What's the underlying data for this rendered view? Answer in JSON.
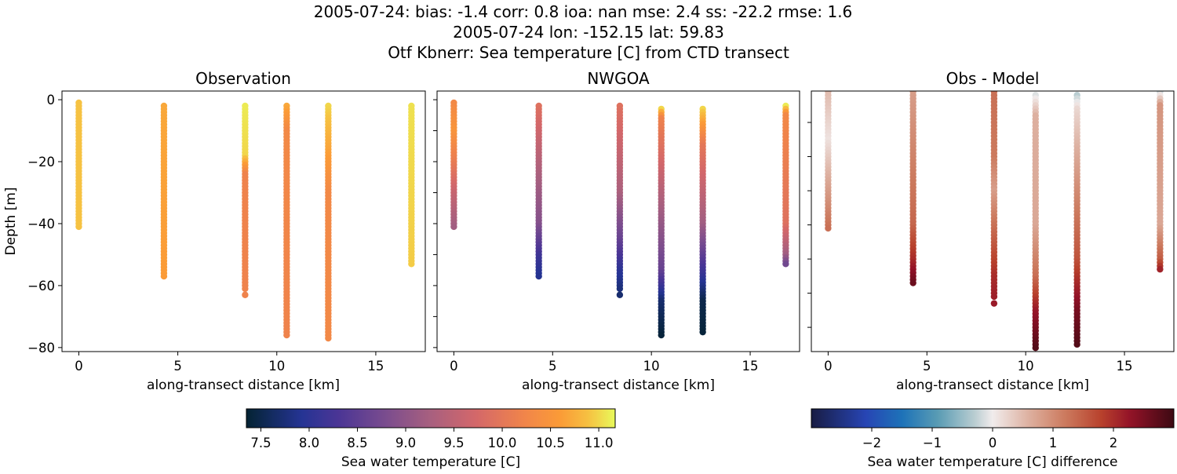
{
  "title_lines": [
    "2005-07-24: bias: -1.4  corr: 0.8  ioa: nan  mse: 2.4  ss: -22.2  rmse: 1.6",
    "2005-07-24 lon: -152.15 lat: 59.83",
    "Otf Kbnerr: Sea temperature [C] from CTD transect"
  ],
  "colors": {
    "thermal": [
      [
        0,
        "#042333"
      ],
      [
        0.15,
        "#253494"
      ],
      [
        0.25,
        "#4b3595"
      ],
      [
        0.38,
        "#7b4d8e"
      ],
      [
        0.5,
        "#a8607f"
      ],
      [
        0.62,
        "#d3676a"
      ],
      [
        0.75,
        "#f0844b"
      ],
      [
        0.85,
        "#fb9b37"
      ],
      [
        0.93,
        "#f6c242"
      ],
      [
        1,
        "#e8fa5b"
      ]
    ],
    "balance": [
      [
        0,
        "#181c43"
      ],
      [
        0.15,
        "#2745b4"
      ],
      [
        0.25,
        "#1d72b8"
      ],
      [
        0.35,
        "#5a9cb4"
      ],
      [
        0.45,
        "#b9cdd1"
      ],
      [
        0.5,
        "#f1ecec"
      ],
      [
        0.6,
        "#ddb0a0"
      ],
      [
        0.7,
        "#cc7a5e"
      ],
      [
        0.8,
        "#b8412c"
      ],
      [
        0.88,
        "#931228"
      ],
      [
        1,
        "#3c0912"
      ]
    ]
  },
  "chart_data": [
    {
      "type": "scatter",
      "title": "Observation",
      "xlabel": "along-transect distance [km]",
      "ylabel": "Depth [m]",
      "xlim": [
        -0.85,
        17.5
      ],
      "ylim": [
        -81.3,
        2.8
      ],
      "xticks": [
        0,
        5,
        10,
        15
      ],
      "xtick_labels": [
        "0",
        "5",
        "10",
        "15"
      ],
      "yticks": [
        0,
        -20,
        -40,
        -60,
        -80
      ],
      "ytick_labels": [
        "0",
        "−20",
        "−40",
        "−60",
        "−80"
      ],
      "colormap": "thermal",
      "clim": [
        7.35,
        11.17
      ],
      "profiles": [
        {
          "x": 0,
          "top": -1,
          "bottom": -41,
          "values": [
            [
              -1,
              10.9
            ],
            [
              -41,
              10.9
            ]
          ]
        },
        {
          "x": 4.3,
          "top": -2,
          "bottom": -57,
          "values": [
            [
              -2,
              10.7
            ],
            [
              -57,
              10.6
            ]
          ]
        },
        {
          "x": 8.4,
          "top": -2,
          "bottom": -61,
          "extra": -63,
          "values": [
            [
              -2,
              11.1
            ],
            [
              -18,
              11.0
            ],
            [
              -24,
              10.2
            ],
            [
              -63,
              10.2
            ]
          ]
        },
        {
          "x": 10.5,
          "top": -2,
          "bottom": -76,
          "values": [
            [
              -2,
              10.7
            ],
            [
              -10,
              10.3
            ],
            [
              -76,
              10.2
            ]
          ]
        },
        {
          "x": 12.6,
          "top": -2,
          "bottom": -77,
          "values": [
            [
              -2,
              11.0
            ],
            [
              -15,
              10.7
            ],
            [
              -30,
              10.3
            ],
            [
              -77,
              10.3
            ]
          ]
        },
        {
          "x": 16.8,
          "top": -2,
          "bottom": -53,
          "values": [
            [
              -2,
              11.05
            ],
            [
              -53,
              10.95
            ]
          ]
        }
      ]
    },
    {
      "type": "scatter",
      "title": "NWGOA",
      "xlabel": "along-transect distance [km]",
      "xlim": [
        -0.85,
        17.5
      ],
      "ylim": [
        -81.3,
        2.8
      ],
      "xticks": [
        0,
        5,
        10,
        15
      ],
      "xtick_labels": [
        "0",
        "5",
        "10",
        "15"
      ],
      "yticks": [
        0,
        -10,
        -20,
        -30,
        -40,
        -50,
        -60,
        -70,
        -80
      ],
      "colormap": "thermal",
      "clim": [
        7.35,
        11.17
      ],
      "profiles": [
        {
          "x": 0,
          "top": -1,
          "bottom": -41,
          "values": [
            [
              -1,
              10.3
            ],
            [
              -10,
              10.5
            ],
            [
              -20,
              10.1
            ],
            [
              -30,
              9.6
            ],
            [
              -41,
              9.2
            ]
          ]
        },
        {
          "x": 4.3,
          "top": -2,
          "bottom": -57,
          "values": [
            [
              -2,
              9.9
            ],
            [
              -20,
              9.4
            ],
            [
              -40,
              8.9
            ],
            [
              -50,
              8.2
            ],
            [
              -57,
              7.9
            ]
          ]
        },
        {
          "x": 8.4,
          "top": -2,
          "bottom": -61,
          "extra": -63,
          "values": [
            [
              -2,
              9.9
            ],
            [
              -30,
              9.3
            ],
            [
              -45,
              8.6
            ],
            [
              -55,
              8.0
            ],
            [
              -63,
              7.7
            ]
          ]
        },
        {
          "x": 10.5,
          "top": -3,
          "bottom": -76,
          "values": [
            [
              -3,
              11.0
            ],
            [
              -6,
              10.2
            ],
            [
              -30,
              9.4
            ],
            [
              -55,
              8.6
            ],
            [
              -65,
              7.7
            ],
            [
              -76,
              7.4
            ]
          ]
        },
        {
          "x": 12.6,
          "top": -3,
          "bottom": -75,
          "values": [
            [
              -3,
              11.0
            ],
            [
              -15,
              10.0
            ],
            [
              -40,
              9.2
            ],
            [
              -55,
              8.2
            ],
            [
              -65,
              7.5
            ],
            [
              -75,
              7.4
            ]
          ]
        },
        {
          "x": 16.8,
          "top": -2,
          "bottom": -53,
          "values": [
            [
              -2,
              11.1
            ],
            [
              -5,
              10.3
            ],
            [
              -40,
              9.9
            ],
            [
              -50,
              9.2
            ],
            [
              -53,
              8.7
            ]
          ]
        }
      ]
    },
    {
      "type": "scatter",
      "title": "Obs - Model",
      "xlabel": "along-transect distance [km]",
      "xlim": [
        -0.85,
        17.5
      ],
      "ylim": [
        -77.1,
        -0.8
      ],
      "xticks": [
        0,
        5,
        10,
        15
      ],
      "xtick_labels": [
        "0",
        "5",
        "10",
        "15"
      ],
      "yticks": [
        -10,
        -20,
        -30,
        -40,
        -50,
        -60,
        -70
      ],
      "colormap": "balance",
      "clim": [
        -3,
        3
      ],
      "profiles": [
        {
          "x": 0,
          "top": -1,
          "bottom": -41,
          "values": [
            [
              -1,
              0.5
            ],
            [
              -15,
              0.1
            ],
            [
              -30,
              0.8
            ],
            [
              -41,
              1.3
            ]
          ]
        },
        {
          "x": 4.3,
          "top": -1,
          "bottom": -57,
          "values": [
            [
              -1,
              0.8
            ],
            [
              -40,
              1.4
            ],
            [
              -50,
              2.0
            ],
            [
              -57,
              2.6
            ]
          ]
        },
        {
          "x": 8.4,
          "top": -1,
          "bottom": -61,
          "extra": -63,
          "values": [
            [
              -1,
              1.3
            ],
            [
              -20,
              1.2
            ],
            [
              -30,
              0.8
            ],
            [
              -55,
              2.0
            ],
            [
              -63,
              2.2
            ]
          ]
        },
        {
          "x": 10.5,
          "top": -2,
          "bottom": -76,
          "values": [
            [
              -2,
              -0.1
            ],
            [
              -8,
              0.6
            ],
            [
              -40,
              0.7
            ],
            [
              -55,
              1.3
            ],
            [
              -65,
              2.2
            ],
            [
              -76,
              2.8
            ]
          ]
        },
        {
          "x": 12.6,
          "top": -2,
          "bottom": -75,
          "values": [
            [
              -2,
              -0.3
            ],
            [
              -6,
              0.2
            ],
            [
              -30,
              1.0
            ],
            [
              -50,
              1.6
            ],
            [
              -65,
              2.5
            ],
            [
              -75,
              2.8
            ]
          ]
        },
        {
          "x": 16.8,
          "top": -1,
          "bottom": -53,
          "values": [
            [
              -1,
              -0.2
            ],
            [
              -5,
              0.9
            ],
            [
              -40,
              0.7
            ],
            [
              -50,
              1.5
            ],
            [
              -53,
              2.1
            ]
          ]
        }
      ]
    }
  ],
  "colorbars": [
    {
      "label": "Sea water temperature [C]",
      "colormap": "thermal",
      "range": [
        7.35,
        11.17
      ],
      "ticks": [
        7.5,
        8.0,
        8.5,
        9.0,
        9.5,
        10.0,
        10.5,
        11.0
      ],
      "tick_labels": [
        "7.5",
        "8.0",
        "8.5",
        "9.0",
        "9.5",
        "10.0",
        "10.5",
        "11.0"
      ]
    },
    {
      "label": "Sea water temperature [C] difference",
      "colormap": "balance",
      "range": [
        -3,
        3
      ],
      "ticks": [
        -2,
        -1,
        0,
        1,
        2
      ],
      "tick_labels": [
        "−2",
        "−1",
        "0",
        "1",
        "2"
      ]
    }
  ]
}
